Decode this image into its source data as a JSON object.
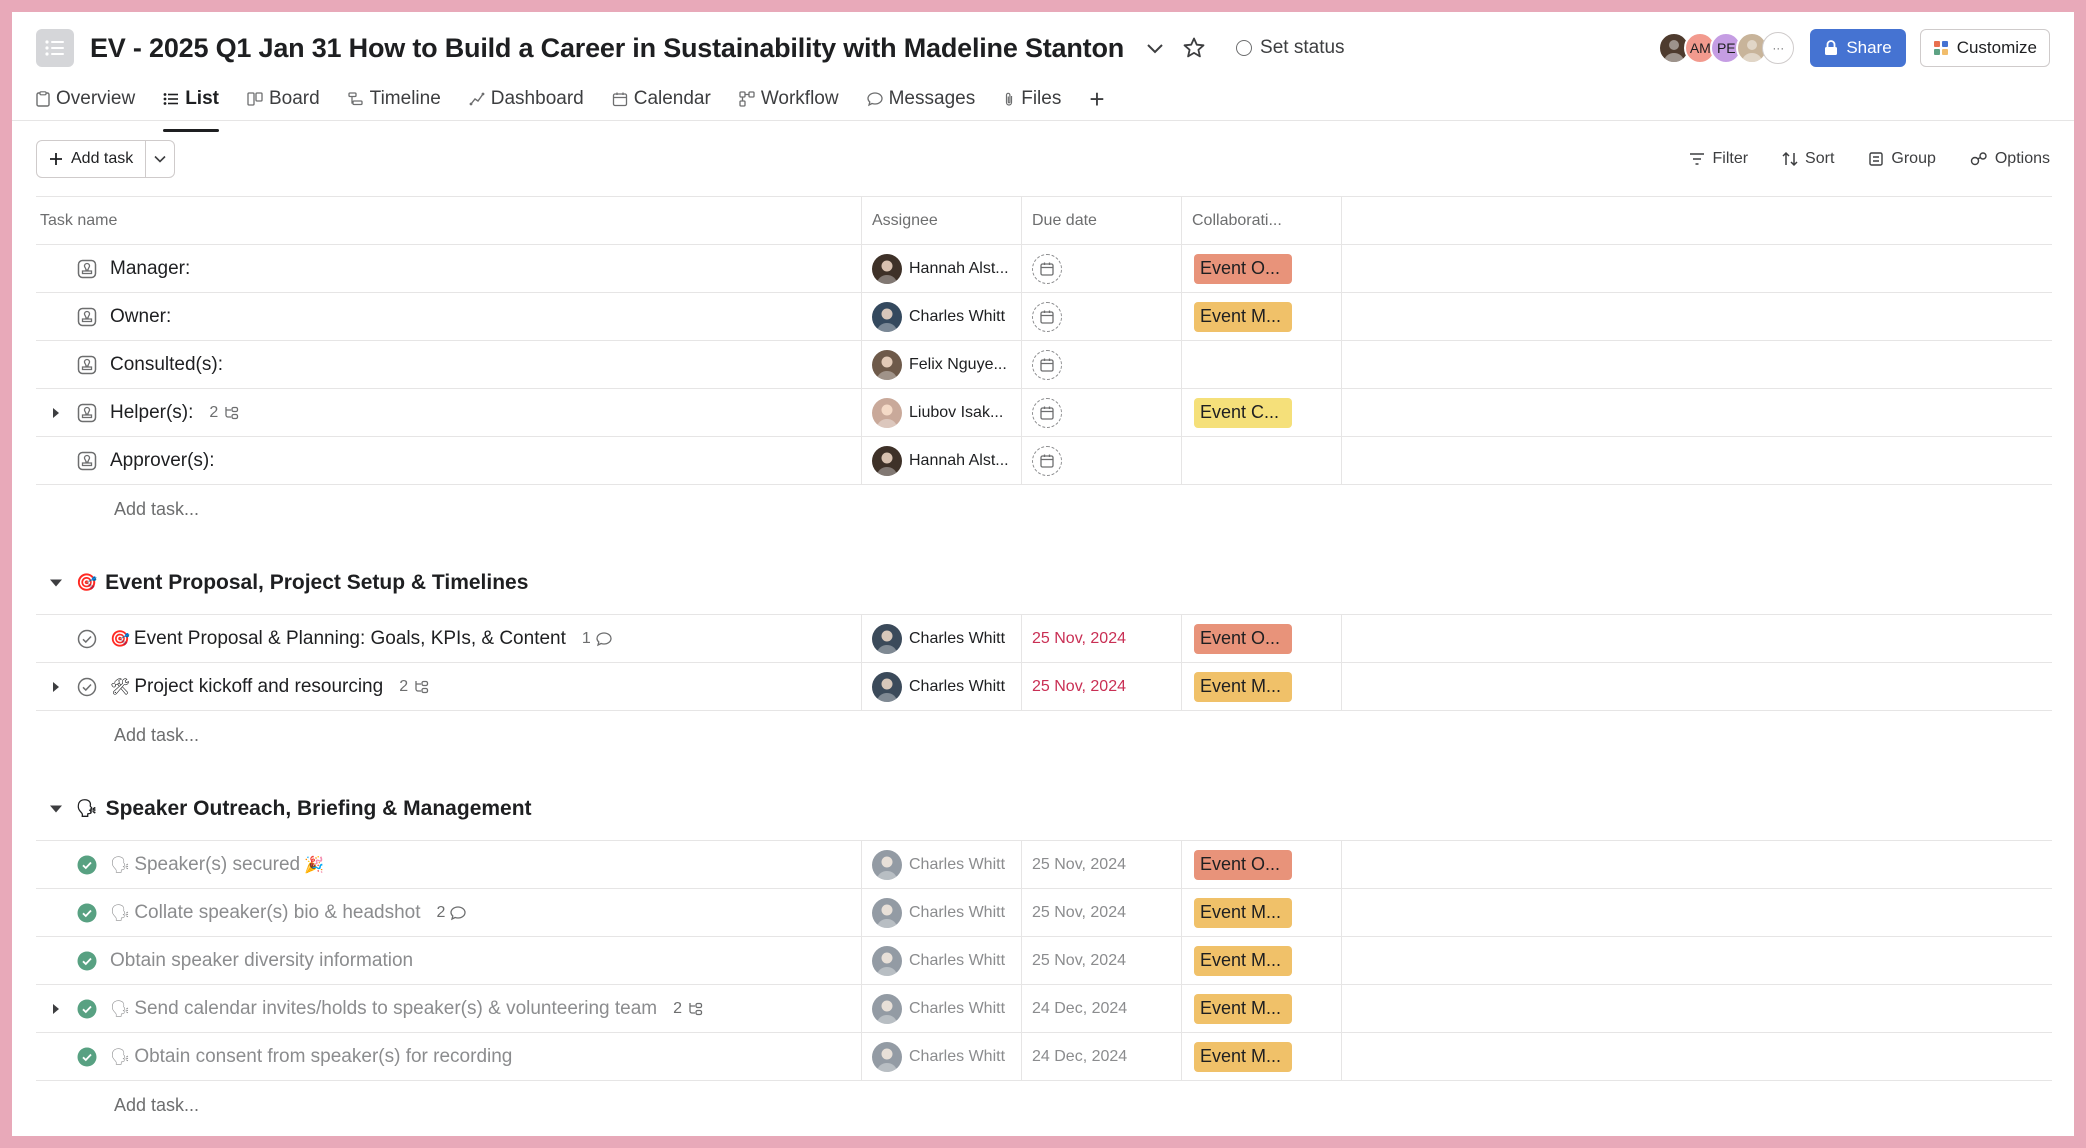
{
  "colors": {
    "frame": "#e8a9b9",
    "accent": "#4573d2",
    "overdue": "#c92f54",
    "done_green": "#58a182",
    "tag_orange": "#e8937a",
    "tag_gold": "#f0c169",
    "tag_yellow": "#f5e07a"
  },
  "header": {
    "title": "EV - 2025 Q1 Jan 31 How to Build a Career in Sustainability with Madeline Stanton",
    "set_status": "Set status",
    "facepile": [
      {
        "initials": "",
        "color": "#4e3b2e",
        "icon": "avatar-photo"
      },
      {
        "initials": "AM",
        "color": "#f29a8e"
      },
      {
        "initials": "PE",
        "color": "#c59de3"
      },
      {
        "initials": "",
        "color": "#c8b49a",
        "icon": "avatar-photo"
      }
    ],
    "share_label": "Share",
    "customize_label": "Customize"
  },
  "tabs": [
    {
      "label": "Overview",
      "icon": "overview-icon"
    },
    {
      "label": "List",
      "icon": "list-icon",
      "active": true
    },
    {
      "label": "Board",
      "icon": "board-icon"
    },
    {
      "label": "Timeline",
      "icon": "timeline-icon"
    },
    {
      "label": "Dashboard",
      "icon": "dashboard-icon"
    },
    {
      "label": "Calendar",
      "icon": "calendar-icon"
    },
    {
      "label": "Workflow",
      "icon": "workflow-icon"
    },
    {
      "label": "Messages",
      "icon": "messages-icon"
    },
    {
      "label": "Files",
      "icon": "files-icon"
    }
  ],
  "toolbar": {
    "add_task": "Add task",
    "filter": "Filter",
    "sort": "Sort",
    "group": "Group",
    "options": "Options"
  },
  "columns": {
    "name": "Task name",
    "assignee": "Assignee",
    "due": "Due date",
    "collab": "Collaborati..."
  },
  "add_task_row": "Add task...",
  "untitled_tasks": [
    {
      "name": "Manager:",
      "assignee": "Hannah Alst...",
      "avatar": "#3e3128",
      "tag": "Event O...",
      "tag_color": "#e8937a"
    },
    {
      "name": "Owner:",
      "assignee": "Charles Whitt",
      "avatar": "#34495e",
      "tag": "Event M...",
      "tag_color": "#f0c169"
    },
    {
      "name": "Consulted(s):",
      "assignee": "Felix Nguye...",
      "avatar": "#6e5a4a",
      "tag": "",
      "tag_color": ""
    },
    {
      "name": "Helper(s):",
      "assignee": "Liubov Isak...",
      "avatar": "#c9a99a",
      "tag": "Event C...",
      "tag_color": "#f5e07a",
      "subtasks": "2",
      "expandable": true
    },
    {
      "name": "Approver(s):",
      "assignee": "Hannah Alst...",
      "avatar": "#3e3128",
      "tag": "",
      "tag_color": ""
    }
  ],
  "sections": [
    {
      "title": "Event Proposal, Project Setup & Timelines",
      "emoji": "🎯",
      "tasks": [
        {
          "emoji": "🎯",
          "name": "Event Proposal & Planning: Goals, KPIs, & Content",
          "comments": "1",
          "assignee": "Charles Whitt",
          "due": "25 Nov, 2024",
          "tag": "Event O...",
          "tag_color": "#e8937a"
        },
        {
          "emoji": "🛠",
          "name": "Project kickoff and resourcing",
          "subtasks": "2",
          "expandable": true,
          "assignee": "Charles Whitt",
          "due": "25 Nov, 2024",
          "tag": "Event M...",
          "tag_color": "#f0c169"
        }
      ]
    },
    {
      "title": "Speaker Outreach, Briefing & Management",
      "emoji": "🗣",
      "tasks": [
        {
          "emoji": "🗣",
          "name": "Speaker(s) secured",
          "suffix": "🎉",
          "assignee": "Charles Whitt",
          "due": "25 Nov, 2024",
          "tag": "Event O...",
          "tag_color": "#e8937a"
        },
        {
          "emoji": "🗣",
          "name": "Collate speaker(s) bio & headshot",
          "comments": "2",
          "assignee": "Charles Whitt",
          "due": "25 Nov, 2024",
          "tag": "Event M...",
          "tag_color": "#f0c169"
        },
        {
          "emoji": "",
          "name": "Obtain speaker diversity information",
          "assignee": "Charles Whitt",
          "due": "25 Nov, 2024",
          "tag": "Event M...",
          "tag_color": "#f0c169"
        },
        {
          "emoji": "🗣",
          "name": "Send calendar invites/holds to speaker(s) & volunteering team",
          "subtasks": "2",
          "expandable": true,
          "assignee": "Charles Whitt",
          "due": "24 Dec, 2024",
          "tag": "Event M...",
          "tag_color": "#f0c169"
        },
        {
          "emoji": "🗣",
          "name": "Obtain consent from speaker(s) for recording",
          "assignee": "Charles Whitt",
          "due": "24 Dec, 2024",
          "tag": "Event M...",
          "tag_color": "#f0c169"
        }
      ]
    }
  ]
}
